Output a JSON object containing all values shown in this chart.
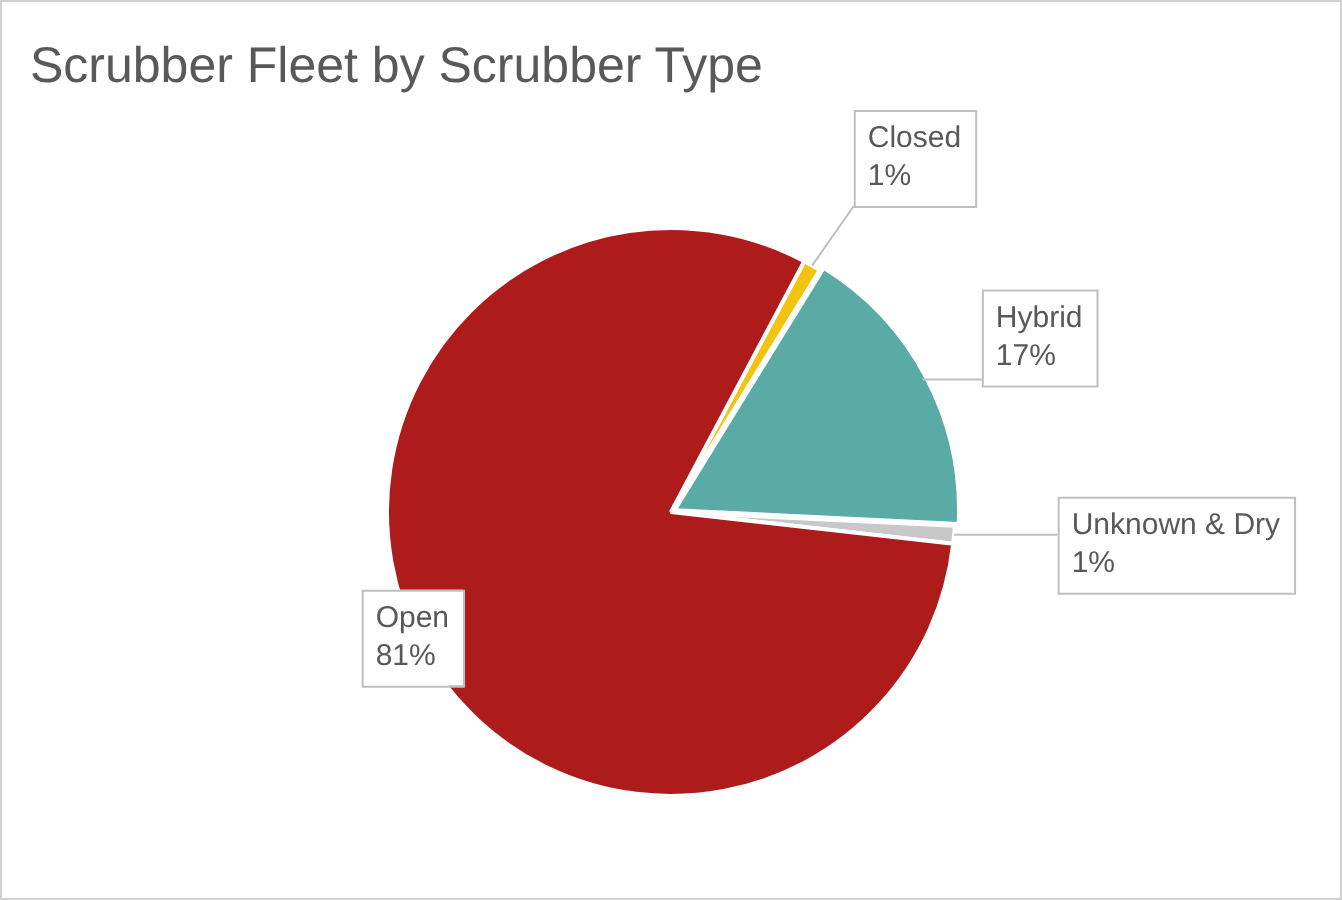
{
  "chart_data": {
    "type": "pie",
    "title": "Scrubber Fleet by Scrubber Type",
    "categories": [
      "Closed",
      "Hybrid",
      "Unknown & Dry",
      "Open"
    ],
    "values": [
      1,
      17,
      1,
      81
    ],
    "colors": [
      "#f2c40f",
      "#5aaaa6",
      "#c8c8c8",
      "#ae1b1b"
    ],
    "value_labels": [
      "1%",
      "17%",
      "1%",
      "81%"
    ],
    "legend": false
  }
}
